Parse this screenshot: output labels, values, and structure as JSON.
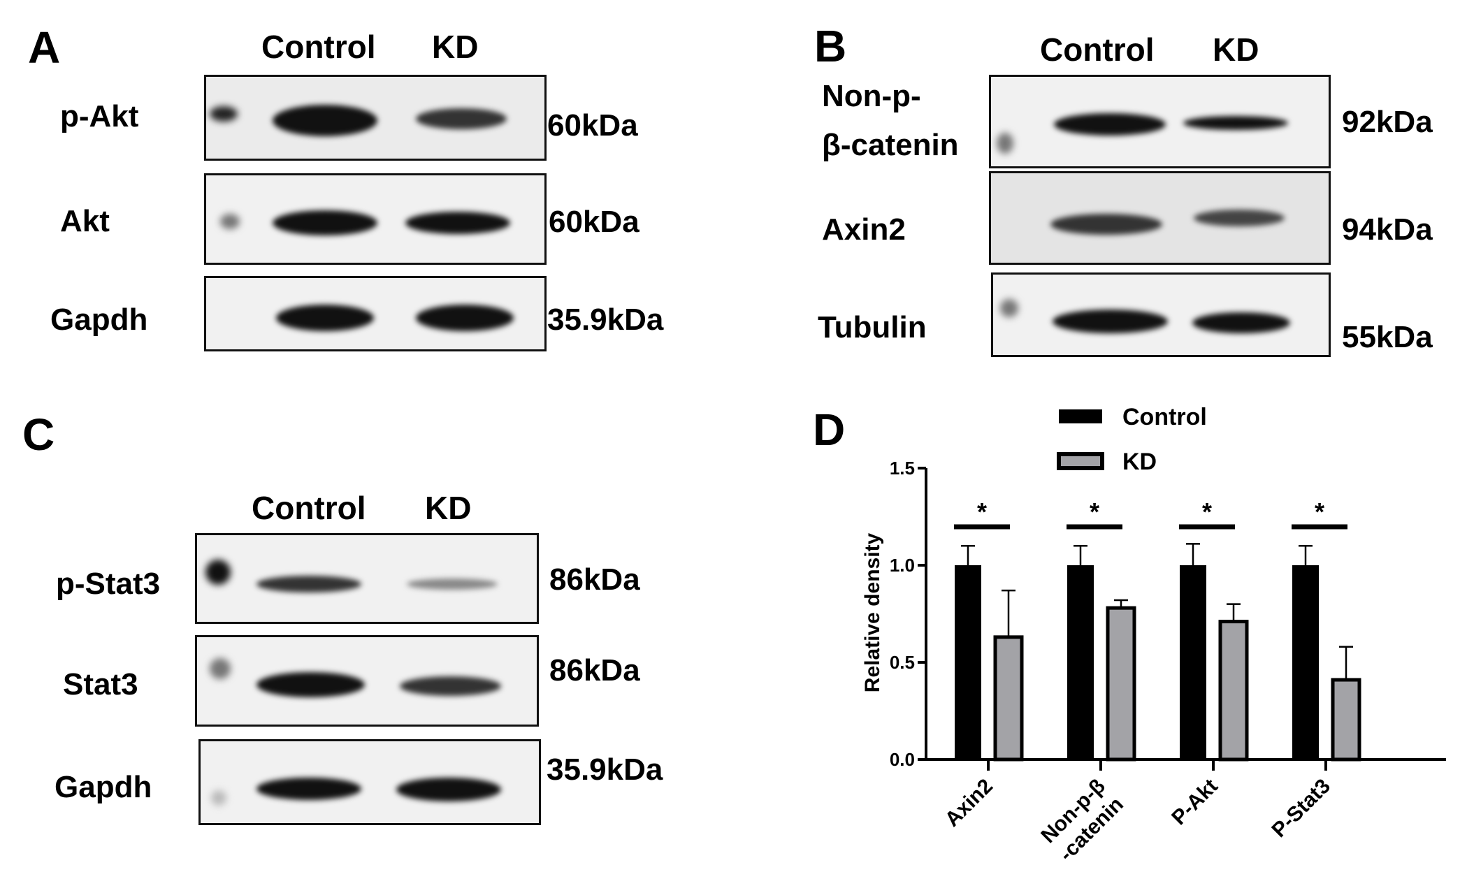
{
  "panels": {
    "A": {
      "letter": "A",
      "lanes": [
        "Control",
        "KD"
      ],
      "rows": [
        {
          "label": "p-Akt",
          "size": "60kDa"
        },
        {
          "label": "Akt",
          "size": "60kDa"
        },
        {
          "label": "Gapdh",
          "size": "35.9kDa"
        }
      ]
    },
    "B": {
      "letter": "B",
      "lanes": [
        "Control",
        "KD"
      ],
      "rows": [
        {
          "label_line1": "Non-p-",
          "label_line2": "β-catenin",
          "size": "92kDa"
        },
        {
          "label": "Axin2",
          "size": "94kDa"
        },
        {
          "label": "Tubulin",
          "size": "55kDa"
        }
      ]
    },
    "C": {
      "letter": "C",
      "lanes": [
        "Control",
        "KD"
      ],
      "rows": [
        {
          "label": "p-Stat3",
          "size": "86kDa"
        },
        {
          "label": "Stat3",
          "size": "86kDa"
        },
        {
          "label": "Gapdh",
          "size": "35.9kDa"
        }
      ]
    },
    "D": {
      "letter": "D"
    }
  },
  "chart_data": {
    "type": "bar",
    "title": "",
    "xlabel": "",
    "ylabel": "Relative density",
    "ylim": [
      0,
      1.5
    ],
    "yticks": [
      "0.0",
      "0.5",
      "1.0",
      "1.5"
    ],
    "categories": [
      "Axin2",
      "Non-p-β -catenin",
      "P-Akt",
      "P-Stat3"
    ],
    "category_lines": [
      [
        "Axin2"
      ],
      [
        "Non-p-β",
        "-catenin"
      ],
      [
        "P-Akt"
      ],
      [
        "P-Stat3"
      ]
    ],
    "legend_placement": "top",
    "series": [
      {
        "name": "Control",
        "color": "#000000",
        "values": [
          1.0,
          1.0,
          1.0,
          1.0
        ],
        "error": [
          0.1,
          0.1,
          0.11,
          0.1
        ]
      },
      {
        "name": "KD",
        "color": "#a3a3a7",
        "values": [
          0.63,
          0.78,
          0.71,
          0.41
        ],
        "error": [
          0.24,
          0.04,
          0.09,
          0.17
        ]
      }
    ],
    "significance": [
      "*",
      "*",
      "*",
      "*"
    ]
  }
}
